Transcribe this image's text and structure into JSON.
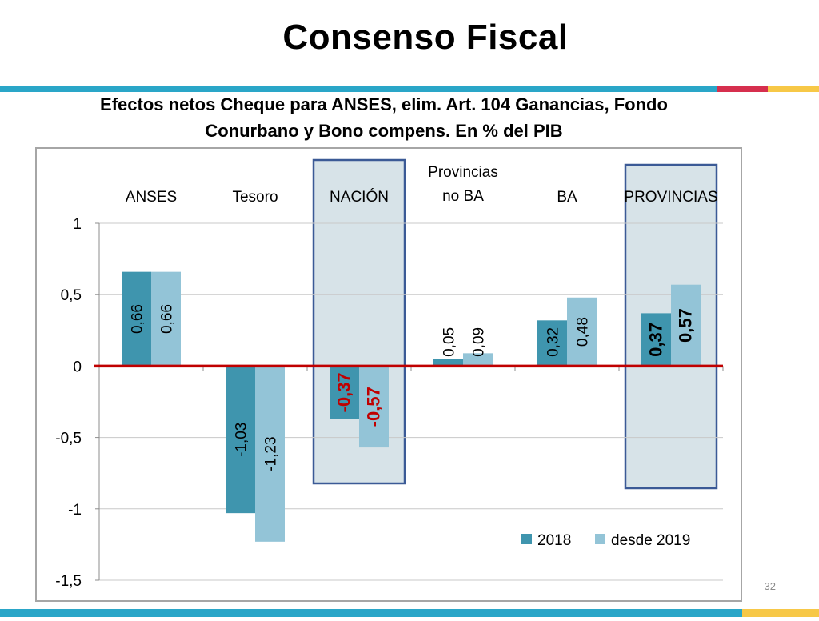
{
  "slide": {
    "title": "Consenso Fiscal",
    "page_number": "32"
  },
  "colors": {
    "series_2018": "#3f95ae",
    "series_2019": "#93c4d7",
    "zero_line": "#c00000",
    "highlight_fill": "#d7e3e8",
    "highlight_border": "#3b5a96",
    "gridline": "#c8c8c8",
    "deco_teal": "#2aa6c8",
    "deco_red": "#d62f4e",
    "deco_yellow": "#f7c847"
  },
  "chart_data": {
    "type": "bar",
    "title": "Efectos netos Cheque para ANSES, elim. Art. 104 Ganancias, Fondo Conurbano y Bono compens. En % del PIB",
    "categories": [
      "ANSES",
      "Tesoro",
      "NACIÓN",
      "Provincias no BA",
      "BA",
      "PROVINCIAS"
    ],
    "category_label_lines": [
      [
        "ANSES"
      ],
      [
        "Tesoro"
      ],
      [
        "NACIÓN"
      ],
      [
        "Provincias",
        "no BA"
      ],
      [
        "BA"
      ],
      [
        "PROVINCIAS"
      ]
    ],
    "series": [
      {
        "name": "2018",
        "values": [
          0.66,
          -1.03,
          -0.37,
          0.05,
          0.32,
          0.37
        ],
        "labels": [
          "0,66",
          "-1,03",
          "-0,37",
          "0,05",
          "0,32",
          "0,37"
        ]
      },
      {
        "name": "desde 2019",
        "values": [
          0.66,
          -1.23,
          -0.57,
          0.09,
          0.48,
          0.57
        ],
        "labels": [
          "0,66",
          "-1,23",
          "-0,57",
          "0,09",
          "0,48",
          "0,57"
        ]
      }
    ],
    "ylim": [
      -1.5,
      1
    ],
    "yticks": [
      1,
      0.5,
      0,
      -0.5,
      -1,
      -1.5
    ],
    "ytick_labels": [
      "1",
      "0,5",
      "0",
      "-0,5",
      "-1",
      "-1,5"
    ],
    "highlighted_categories": [
      "NACIÓN",
      "PROVINCIAS"
    ],
    "grid": true,
    "legend": "bottom-right"
  }
}
